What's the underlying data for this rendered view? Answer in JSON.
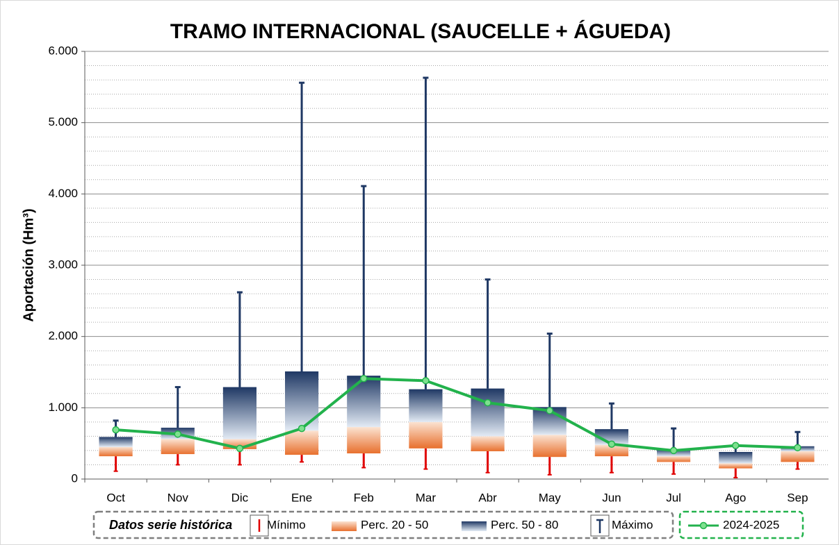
{
  "chart_data": {
    "type": "box-range",
    "title": "TRAMO INTERNACIONAL (SAUCELLE + ÁGUEDA)",
    "y_label": "Aportación (Hm³)",
    "legend_group": "Datos serie histórica",
    "categories": [
      "Oct",
      "Nov",
      "Dic",
      "Ene",
      "Feb",
      "Mar",
      "Abr",
      "May",
      "Jun",
      "Jul",
      "Ago",
      "Sep"
    ],
    "series": [
      {
        "name": "Mínimo",
        "color": "#e00000",
        "values": [
          110,
          200,
          200,
          240,
          160,
          140,
          90,
          60,
          90,
          70,
          20,
          140
        ]
      },
      {
        "name": "Perc. 20 - 50",
        "color": "#e8702e",
        "lower": [
          320,
          350,
          420,
          340,
          360,
          430,
          390,
          310,
          320,
          240,
          150,
          240
        ],
        "values": [
          450,
          560,
          560,
          680,
          730,
          800,
          600,
          620,
          480,
          320,
          220,
          390
        ]
      },
      {
        "name": "Perc. 50 - 80",
        "color": "#1f3864",
        "values": [
          590,
          720,
          1290,
          1510,
          1450,
          1260,
          1270,
          1010,
          700,
          420,
          380,
          460
        ]
      },
      {
        "name": "Máximo",
        "color": "#1f3864",
        "values": [
          820,
          1290,
          2620,
          5560,
          4110,
          5630,
          2800,
          2040,
          1060,
          710,
          470,
          660
        ]
      },
      {
        "name": "2024-2025",
        "color": "#22b24c",
        "values": [
          690,
          630,
          430,
          710,
          1410,
          1380,
          1070,
          960,
          490,
          400,
          470,
          440
        ]
      }
    ],
    "ylim": [
      0,
      6000
    ],
    "yticks": [
      0,
      {
        "value": 1000,
        "label": "1.000"
      },
      {
        "value": 2000,
        "label": "2.000"
      },
      {
        "value": 3000,
        "label": "3.000"
      },
      {
        "value": 4000,
        "label": "4.000"
      },
      {
        "value": 5000,
        "label": "5.000"
      },
      {
        "value": 6000,
        "label": "6.000"
      }
    ],
    "grid": true
  }
}
